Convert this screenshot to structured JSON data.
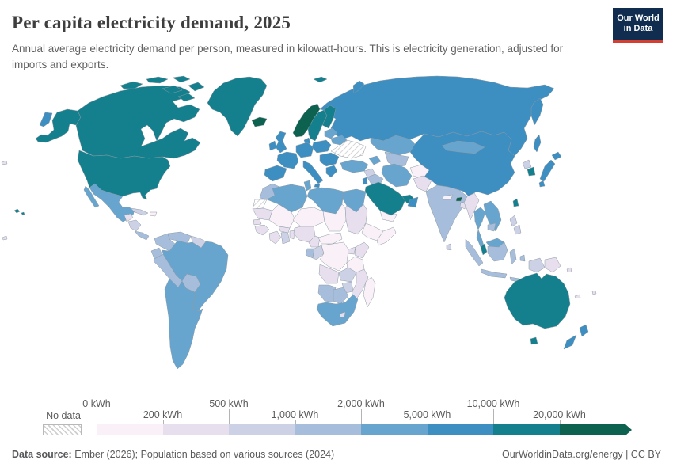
{
  "header": {
    "title": "Per capita electricity demand, 2025",
    "subtitle": "Annual average electricity demand per person, measured in kilowatt-hours. This is electricity generation, adjusted for imports and exports.",
    "logo_line1": "Our World",
    "logo_line2": "in Data",
    "logo_bg": "#102d50",
    "logo_accent": "#d43e33"
  },
  "legend": {
    "no_data_label": "No data",
    "tick_labels": [
      "0 kWh",
      "200 kWh",
      "500 kWh",
      "1,000 kWh",
      "2,000 kWh",
      "5,000 kWh",
      "10,000 kWh",
      "20,000 kWh"
    ],
    "bin_order": [
      "b0",
      "b1",
      "b2",
      "b3",
      "b4",
      "b5",
      "b6",
      "b7"
    ],
    "bin_colors": {
      "b0": "#f9f1f7",
      "b1": "#e7deee",
      "b2": "#cdd1e6",
      "b3": "#a6bddb",
      "b4": "#67a5cf",
      "b5": "#3d8ec1",
      "b6": "#14808d",
      "b7": "#0d614f"
    },
    "bin_ranges": [
      "0-200 kWh",
      "200-500 kWh",
      "500-1,000 kWh",
      "1,000-2,000 kWh",
      "2,000-5,000 kWh",
      "5,000-10,000 kWh",
      "10,000-20,000 kWh",
      "20,000+ kWh"
    ]
  },
  "map": {
    "regions": {
      "chukotka-sliver": "b5",
      "alaska": "b6",
      "canada": "b6",
      "canada-islands": "b6",
      "greenland": "b6",
      "iceland": "b7",
      "hawaii": "b6",
      "pacific-islet": "b1",
      "usa": "b6",
      "mexico": "b4",
      "guatemala": "b1",
      "honduras-nicaragua": "b2",
      "costa-rica-panama": "b3",
      "cuba": "b2",
      "hispaniola": "b0",
      "venezuela": "b3",
      "colombia": "b3",
      "guyanas": "b2",
      "ecuador": "b3",
      "peru": "b3",
      "bolivia": "b3",
      "brazil": "b4",
      "southern-cone": "b4",
      "norway": "b7",
      "sweden": "b6",
      "finland": "b6",
      "denmark": "b5",
      "uk": "b5",
      "ireland": "b5",
      "france": "b5",
      "iberia": "b5",
      "germany-central": "b5",
      "italy": "b5",
      "poland": "b5",
      "baltics": "b4",
      "belarus": "b4",
      "ukraine": "no_data",
      "balkans": "b5",
      "greece": "b5",
      "russia": "b5",
      "svalbard": "b6",
      "novaya-zemlya": "b5",
      "kamchatka": "b5",
      "kazakhstan": "b4",
      "central-asia": "b3",
      "caucasus": "b4",
      "turkey": "b4",
      "syria": "b2",
      "iraq": "b3",
      "iran": "b4",
      "israel-jordan": "b5",
      "saudi-arabia": "b6",
      "gulf-states": "b6",
      "oman": "b5",
      "yemen": "b0",
      "afghanistan": "b0",
      "pakistan": "b1",
      "india": "b3",
      "nepal": "b0",
      "bhutan": "b7",
      "bangladesh": "b1",
      "sri-lanka": "b2",
      "myanmar": "b1",
      "china": "b5",
      "mongolia": "b4",
      "north-korea": "b2",
      "south-korea": "b6",
      "japan": "b5",
      "sakhalin": "b5",
      "taiwan": "b6",
      "thailand": "b4",
      "laos-vietnam": "b4",
      "cambodia": "b3",
      "malaysia-peninsula": "b6",
      "malaysia-borneo": "b4",
      "indonesia": "b3",
      "west-papua": "b2",
      "png": "b1",
      "philippines": "b2",
      "morocco": "b3",
      "western-sahara": "no_data",
      "algeria": "b4",
      "tunisia": "b4",
      "libya": "b4",
      "egypt": "b4",
      "mauritania": "b1",
      "mali": "b0",
      "niger": "b0",
      "chad": "b0",
      "sudan": "b1",
      "ethiopia": "b0",
      "somalia": "b0",
      "senegal": "b1",
      "guinea": "b1",
      "ivory-coast": "b1",
      "ghana": "b2",
      "benin-togo": "b1",
      "burkina": "b1",
      "nigeria": "b1",
      "cameroon": "b1",
      "car": "b0",
      "gabon": "b3",
      "congo": "b2",
      "drc": "b0",
      "uganda": "b1",
      "kenya": "b1",
      "tanzania": "b0",
      "angola": "b1",
      "zambia": "b2",
      "mozambique": "b1",
      "zimbabwe": "b2",
      "namibia": "b3",
      "botswana": "b3",
      "south-africa": "b4",
      "lesotho": "b1",
      "madagascar": "b0",
      "australia": "b6",
      "tasmania": "b6",
      "new-zealand": "b5",
      "melanesia": "b1"
    }
  },
  "footer": {
    "source_label": "Data source:",
    "source_text": " Ember (2026); Population based on various sources (2024)",
    "license_text": "OurWorldinData.org/energy | CC BY"
  }
}
